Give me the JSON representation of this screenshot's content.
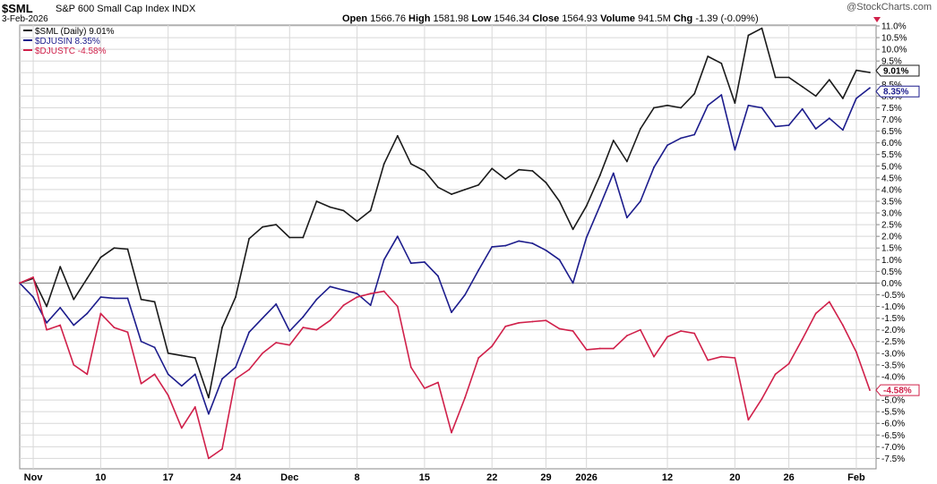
{
  "header": {
    "symbol": "$SML",
    "name": "S&P 600 Small Cap Index INDX",
    "date": "3-Feb-2026",
    "brand": "@StockCharts.com",
    "open_label": "Open",
    "open": "1566.76",
    "high_label": "High",
    "high": "1581.98",
    "low_label": "Low",
    "low": "1546.34",
    "close_label": "Close",
    "close": "1564.93",
    "volume_label": "Volume",
    "volume": "941.5M",
    "chg_label": "Chg",
    "chg": "-1.39 (-0.09%)"
  },
  "colors": {
    "sml": "#1a1a1a",
    "djusin": "#1c1c8c",
    "djustc": "#d0204a",
    "grid": "#d8d8d8",
    "zero": "#777777"
  },
  "chart_data": {
    "type": "line",
    "yunit": "%",
    "ylim": [
      -7.6,
      11.0
    ],
    "y_ticks": [
      "11.0%",
      "10.5%",
      "10.0%",
      "9.5%",
      "9.0%",
      "8.5%",
      "8.0%",
      "7.5%",
      "7.0%",
      "6.5%",
      "6.0%",
      "5.5%",
      "5.0%",
      "4.5%",
      "4.0%",
      "3.5%",
      "3.0%",
      "2.5%",
      "2.0%",
      "1.5%",
      "1.0%",
      "0.5%",
      "0.0%",
      "-0.5%",
      "-1.0%",
      "-1.5%",
      "-2.0%",
      "-2.5%",
      "-3.0%",
      "-3.5%",
      "-4.0%",
      "-4.5%",
      "-5.0%",
      "-5.5%",
      "-6.0%",
      "-6.5%",
      "-7.0%",
      "-7.5%"
    ],
    "x_ticks": [
      {
        "label": "Nov",
        "i": 1
      },
      {
        "label": "10",
        "i": 6
      },
      {
        "label": "17",
        "i": 11
      },
      {
        "label": "24",
        "i": 16
      },
      {
        "label": "Dec",
        "i": 20
      },
      {
        "label": "8",
        "i": 25
      },
      {
        "label": "15",
        "i": 30
      },
      {
        "label": "22",
        "i": 35
      },
      {
        "label": "29",
        "i": 39
      },
      {
        "label": "2026",
        "i": 42
      },
      {
        "label": "12",
        "i": 48
      },
      {
        "label": "20",
        "i": 53
      },
      {
        "label": "26",
        "i": 57
      },
      {
        "label": "Feb",
        "i": 62
      }
    ],
    "n_points": 64,
    "legend_position": "top-left",
    "grid": true,
    "series": [
      {
        "name": "$SML (Daily) 9.01%",
        "key": "sml",
        "last_label": "9.01%",
        "values": [
          0.0,
          0.2,
          -1.0,
          0.7,
          -0.7,
          0.2,
          1.1,
          1.5,
          1.45,
          -0.7,
          -0.8,
          -3.0,
          -3.1,
          -3.2,
          -4.9,
          -1.9,
          -0.6,
          1.9,
          2.4,
          2.5,
          1.95,
          1.95,
          3.5,
          3.25,
          3.1,
          2.65,
          3.1,
          5.1,
          6.3,
          5.1,
          4.8,
          4.1,
          3.8,
          4.0,
          4.2,
          4.9,
          4.45,
          4.85,
          4.8,
          4.3,
          3.5,
          2.3,
          3.3,
          4.6,
          6.1,
          5.2,
          6.6,
          7.5,
          7.6,
          7.5,
          8.1,
          9.7,
          9.4,
          7.7,
          10.6,
          10.9,
          8.8,
          8.8,
          8.4,
          8.0,
          8.7,
          7.9,
          9.1,
          9.01
        ]
      },
      {
        "name": "$DJUSIN 8.35%",
        "key": "djusin",
        "last_label": "8.35%",
        "values": [
          0.0,
          -0.6,
          -1.7,
          -1.05,
          -1.8,
          -1.3,
          -0.6,
          -0.65,
          -0.65,
          -2.5,
          -2.75,
          -3.9,
          -4.4,
          -3.9,
          -5.6,
          -4.1,
          -3.6,
          -2.1,
          -1.5,
          -0.9,
          -2.05,
          -1.45,
          -0.7,
          -0.15,
          -0.3,
          -0.45,
          -0.95,
          1.0,
          2.0,
          0.85,
          0.9,
          0.3,
          -1.25,
          -0.5,
          0.55,
          1.55,
          1.6,
          1.8,
          1.7,
          1.4,
          1.0,
          0.0,
          1.95,
          3.3,
          4.7,
          2.8,
          3.5,
          4.95,
          5.9,
          6.2,
          6.35,
          7.6,
          8.05,
          5.7,
          7.6,
          7.5,
          6.7,
          6.75,
          7.45,
          6.6,
          7.05,
          6.55,
          7.9,
          8.35
        ]
      },
      {
        "name": "$DJUSTC -4.58%",
        "key": "djustc",
        "last_label": "-4.58%",
        "values": [
          0.0,
          0.25,
          -2.0,
          -1.8,
          -3.5,
          -3.9,
          -1.3,
          -1.9,
          -2.1,
          -4.3,
          -3.9,
          -4.8,
          -6.2,
          -5.3,
          -7.5,
          -7.1,
          -4.1,
          -3.7,
          -3.0,
          -2.55,
          -2.65,
          -1.9,
          -2.0,
          -1.6,
          -0.95,
          -0.6,
          -0.45,
          -0.35,
          -1.0,
          -3.6,
          -4.5,
          -4.25,
          -6.4,
          -4.9,
          -3.2,
          -2.7,
          -1.85,
          -1.7,
          -1.65,
          -1.6,
          -1.95,
          -2.05,
          -2.85,
          -2.8,
          -2.8,
          -2.25,
          -2.0,
          -3.15,
          -2.3,
          -2.05,
          -2.15,
          -3.3,
          -3.15,
          -3.2,
          -5.85,
          -4.95,
          -3.9,
          -3.45,
          -2.4,
          -1.3,
          -0.8,
          -1.8,
          -2.95,
          -4.58
        ]
      }
    ]
  }
}
